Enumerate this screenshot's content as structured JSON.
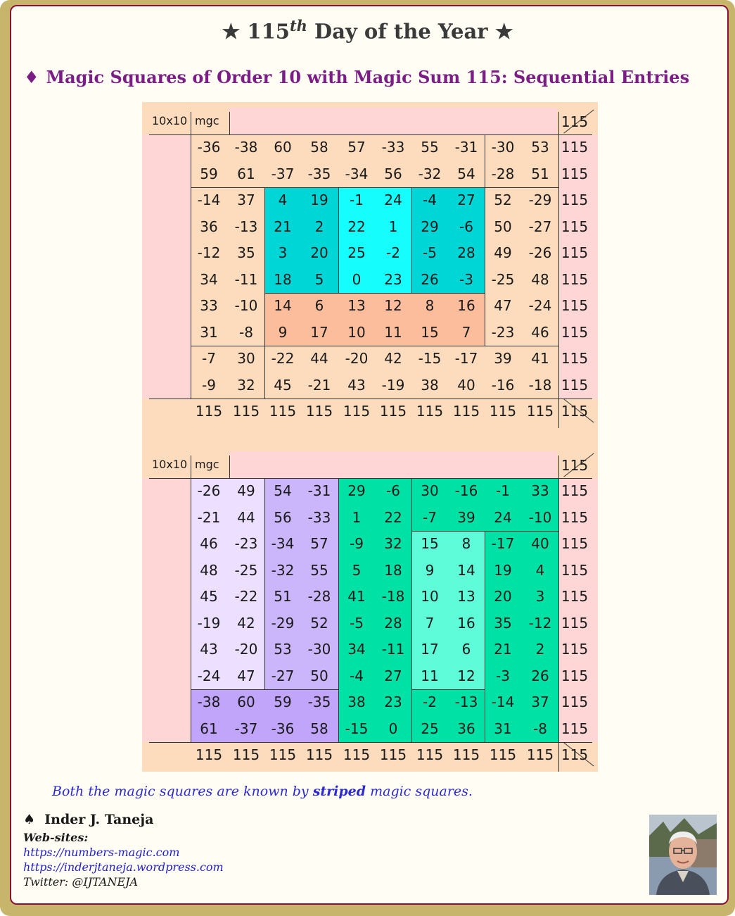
{
  "header": {
    "title_pre": "115",
    "title_sup": "th",
    "title_post": "Day of the Year",
    "star": "★",
    "subtitle_bullet": "♦",
    "subtitle": "Magic Squares of Order 10 with Magic Sum 115: Sequential Entries"
  },
  "square1": {
    "label": "10x10",
    "tag": "mgc",
    "sum": "115",
    "rows": [
      [
        "-36",
        "-38",
        "60",
        "58",
        "57",
        "-33",
        "55",
        "-31",
        "-30",
        "53"
      ],
      [
        "59",
        "61",
        "-37",
        "-35",
        "-34",
        "56",
        "-32",
        "54",
        "-28",
        "51"
      ],
      [
        "-14",
        "37",
        "4",
        "19",
        "-1",
        "24",
        "-4",
        "27",
        "52",
        "-29"
      ],
      [
        "36",
        "-13",
        "21",
        "2",
        "22",
        "1",
        "29",
        "-6",
        "50",
        "-27"
      ],
      [
        "-12",
        "35",
        "3",
        "20",
        "25",
        "-2",
        "-5",
        "28",
        "49",
        "-26"
      ],
      [
        "34",
        "-11",
        "18",
        "5",
        "0",
        "23",
        "26",
        "-3",
        "-25",
        "48"
      ],
      [
        "33",
        "-10",
        "14",
        "6",
        "13",
        "12",
        "8",
        "16",
        "47",
        "-24"
      ],
      [
        "31",
        "-8",
        "9",
        "17",
        "10",
        "11",
        "15",
        "7",
        "-23",
        "46"
      ],
      [
        "-7",
        "30",
        "-22",
        "44",
        "-20",
        "42",
        "-15",
        "-17",
        "39",
        "41"
      ],
      [
        "-9",
        "32",
        "45",
        "-21",
        "43",
        "-19",
        "38",
        "40",
        "-16",
        "-18"
      ]
    ],
    "row_sums": [
      "115",
      "115",
      "115",
      "115",
      "115",
      "115",
      "115",
      "115",
      "115",
      "115"
    ],
    "col_sums": [
      "115",
      "115",
      "115",
      "115",
      "115",
      "115",
      "115",
      "115",
      "115",
      "115"
    ]
  },
  "square2": {
    "label": "10x10",
    "tag": "mgc",
    "sum": "115",
    "rows": [
      [
        "-26",
        "49",
        "54",
        "-31",
        "29",
        "-6",
        "30",
        "-16",
        "-1",
        "33"
      ],
      [
        "-21",
        "44",
        "56",
        "-33",
        "1",
        "22",
        "-7",
        "39",
        "24",
        "-10"
      ],
      [
        "46",
        "-23",
        "-34",
        "57",
        "-9",
        "32",
        "15",
        "8",
        "-17",
        "40"
      ],
      [
        "48",
        "-25",
        "-32",
        "55",
        "5",
        "18",
        "9",
        "14",
        "19",
        "4"
      ],
      [
        "45",
        "-22",
        "51",
        "-28",
        "41",
        "-18",
        "10",
        "13",
        "20",
        "3"
      ],
      [
        "-19",
        "42",
        "-29",
        "52",
        "-5",
        "28",
        "7",
        "16",
        "35",
        "-12"
      ],
      [
        "43",
        "-20",
        "53",
        "-30",
        "34",
        "-11",
        "17",
        "6",
        "21",
        "2"
      ],
      [
        "-24",
        "47",
        "-27",
        "50",
        "-4",
        "27",
        "11",
        "12",
        "-3",
        "26"
      ],
      [
        "-38",
        "60",
        "59",
        "-35",
        "38",
        "23",
        "-2",
        "-13",
        "-14",
        "37"
      ],
      [
        "61",
        "-37",
        "-36",
        "58",
        "-15",
        "0",
        "25",
        "36",
        "31",
        "-8"
      ]
    ],
    "row_sums": [
      "115",
      "115",
      "115",
      "115",
      "115",
      "115",
      "115",
      "115",
      "115",
      "115"
    ],
    "col_sums": [
      "115",
      "115",
      "115",
      "115",
      "115",
      "115",
      "115",
      "115",
      "115",
      "115"
    ]
  },
  "colors": {
    "peach": "#fddcbd",
    "pink": "#ffd6d6",
    "teal": "#00d6d6",
    "cyan": "#15fdfd",
    "salmon": "#fcbd9c",
    "lavender_light": "#ecdfff",
    "lavender": "#cbb5fb",
    "lavender_dark": "#c1a5fb",
    "green": "#00e2a5",
    "mint": "#5ffcd9"
  },
  "note": {
    "pre": "Both the magic squares are known by ",
    "bold": "striped",
    "post": " magic squares."
  },
  "footer": {
    "spade": "♠",
    "author": "Inder J. Taneja",
    "web_label": "Web-sites:",
    "links": [
      "https://numbers-magic.com",
      "https://inderjtaneja.wordpress.com"
    ],
    "twitter": "Twitter: @IJTANEJA"
  }
}
